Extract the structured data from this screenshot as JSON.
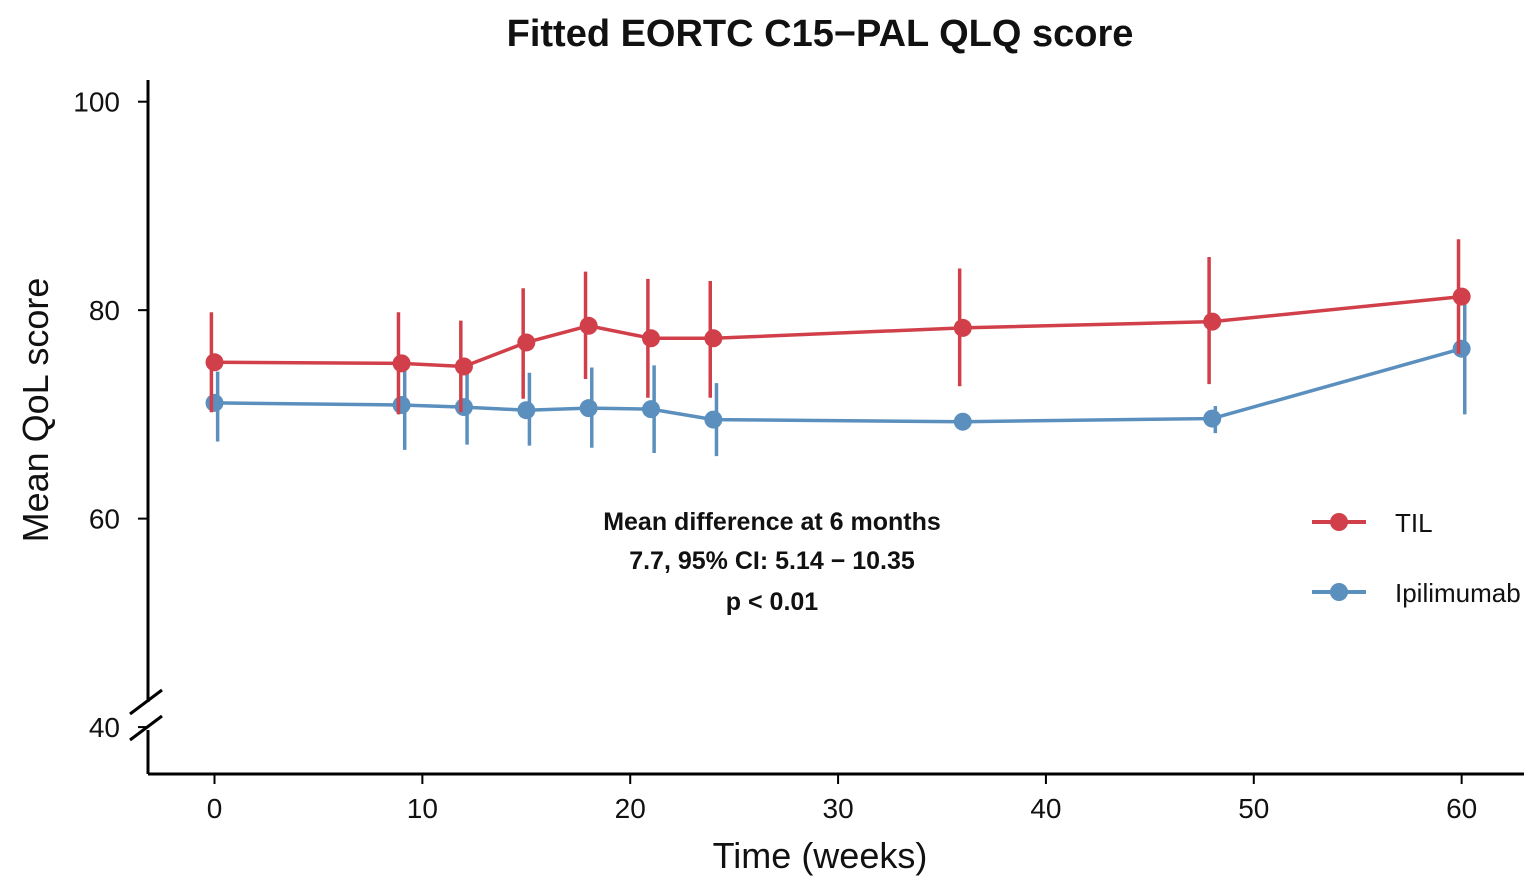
{
  "chart_data": {
    "type": "line",
    "title": "Fitted EORTC C15−PAL QLQ score",
    "xlabel": "Time (weeks)",
    "ylabel": "Mean QoL score",
    "xlim": [
      -3.2,
      63
    ],
    "ylim": [
      35.5,
      104
    ],
    "xticks": [
      0,
      10,
      20,
      30,
      40,
      50,
      60
    ],
    "yticks": [
      40,
      60,
      80,
      100
    ],
    "y_axis_break": true,
    "grid": false,
    "legend_position": "right",
    "series": [
      {
        "name": "TIL",
        "color": "#d1404a",
        "x": [
          0,
          9,
          12,
          15,
          18,
          21,
          24,
          36,
          48,
          60
        ],
        "y": [
          75.0,
          74.9,
          74.6,
          76.9,
          78.5,
          77.3,
          77.3,
          78.3,
          78.9,
          81.3
        ],
        "lower": [
          70.2,
          70.0,
          70.2,
          71.5,
          73.4,
          71.6,
          71.6,
          72.7,
          72.9,
          75.8
        ],
        "upper": [
          79.8,
          79.8,
          79.0,
          82.1,
          83.7,
          83.0,
          82.8,
          84.0,
          85.1,
          86.8
        ]
      },
      {
        "name": "Ipilimumab",
        "color": "#5b8fbe",
        "x": [
          0,
          9,
          12,
          15,
          18,
          21,
          24,
          36,
          48,
          60
        ],
        "y": [
          71.1,
          70.9,
          70.7,
          70.4,
          70.6,
          70.5,
          69.5,
          69.3,
          69.6,
          76.3
        ],
        "lower": [
          67.4,
          66.6,
          67.1,
          67.0,
          66.8,
          66.3,
          66.0,
          69.3,
          68.2,
          70.0
        ],
        "upper": [
          74.1,
          74.5,
          74.0,
          74.0,
          74.5,
          74.7,
          73.0,
          69.3,
          70.8,
          81.0
        ]
      }
    ],
    "annotation": {
      "lines": [
        "Mean difference at 6 months",
        "7.7, 95% CI: 5.14 − 10.35",
        "p < 0.01"
      ]
    }
  }
}
